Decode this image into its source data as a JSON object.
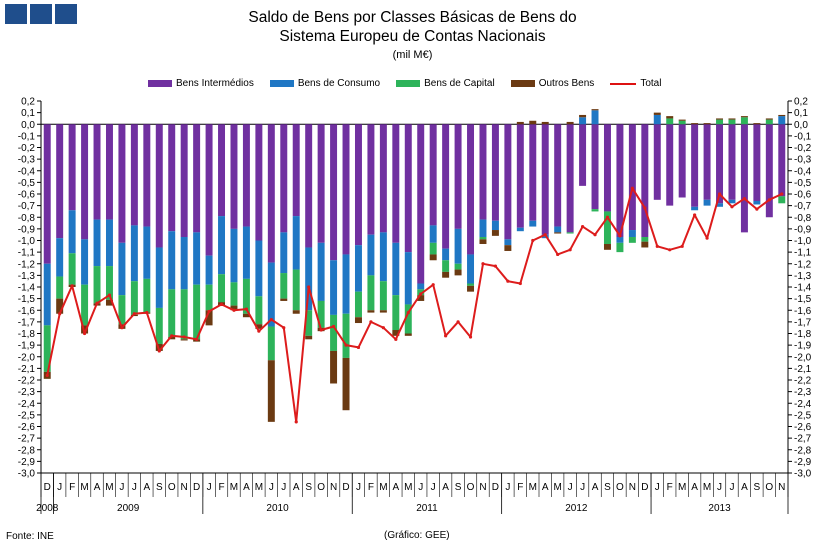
{
  "title_line1": "Saldo de Bens por Classes Básicas de Bens do",
  "title_line2": "Sistema Europeu de Contas Nacionais",
  "units": "(mil M€)",
  "source": "Fonte: INE",
  "credit": "(Gráfico: GEE)",
  "colors": {
    "intermedios": "#7030a0",
    "consumo": "#1f77c4",
    "capital": "#2db35a",
    "outros": "#6b3a12",
    "total": "#dd1c1c"
  },
  "chart_data": {
    "type": "bar",
    "stacked": true,
    "legend": [
      "Bens Intermédios",
      "Bens de Consumo",
      "Bens de Capital",
      "Outros Bens",
      "Total"
    ],
    "ylim": [
      -3.0,
      0.2
    ],
    "yticks": [
      "0,2",
      "0,1",
      "0,0",
      "-0,1",
      "-0,2",
      "-0,3",
      "-0,4",
      "-0,5",
      "-0,6",
      "-0,7",
      "-0,8",
      "-0,9",
      "-1,0",
      "-1,1",
      "-1,2",
      "-1,3",
      "-1,4",
      "-1,5",
      "-1,6",
      "-1,7",
      "-1,8",
      "-1,9",
      "-2,0",
      "-2,1",
      "-2,2",
      "-2,3",
      "-2,4",
      "-2,5",
      "-2,6",
      "-2,7",
      "-2,8",
      "-2,9",
      "-3,0"
    ],
    "categories": [
      "D",
      "J",
      "F",
      "M",
      "A",
      "M",
      "J",
      "J",
      "A",
      "S",
      "O",
      "N",
      "D",
      "J",
      "F",
      "M",
      "A",
      "M",
      "J",
      "J",
      "A",
      "S",
      "O",
      "N",
      "D",
      "J",
      "F",
      "M",
      "A",
      "M",
      "J",
      "J",
      "A",
      "S",
      "O",
      "N",
      "D",
      "J",
      "F",
      "M",
      "A",
      "M",
      "J",
      "J",
      "A",
      "S",
      "O",
      "N",
      "D",
      "J",
      "F",
      "M",
      "A",
      "M",
      "J",
      "J",
      "A",
      "S",
      "O",
      "N"
    ],
    "years": [
      {
        "label": "2008",
        "start": 0,
        "end": 0
      },
      {
        "label": "2009",
        "start": 1,
        "end": 12
      },
      {
        "label": "2010",
        "start": 13,
        "end": 24
      },
      {
        "label": "2011",
        "start": 25,
        "end": 36
      },
      {
        "label": "2012",
        "start": 37,
        "end": 48
      },
      {
        "label": "2013",
        "start": 49,
        "end": 59
      }
    ],
    "series": [
      {
        "name": "Bens Intermédios",
        "values": [
          -1.2,
          -0.98,
          -0.74,
          -0.99,
          -0.82,
          -0.82,
          -1.02,
          -0.87,
          -0.88,
          -1.06,
          -0.92,
          -0.97,
          -0.93,
          -1.13,
          -0.79,
          -0.9,
          -0.88,
          -1.0,
          -1.19,
          -0.93,
          -0.79,
          -1.06,
          -1.02,
          -1.17,
          -1.12,
          -1.04,
          -0.95,
          -0.93,
          -1.02,
          -1.1,
          -1.37,
          -0.87,
          -1.07,
          -0.9,
          -1.12,
          -0.82,
          -0.83,
          -0.99,
          -0.89,
          -0.83,
          -0.95,
          -0.88,
          -0.93,
          -0.53,
          -0.73,
          -0.75,
          -0.97,
          -0.91,
          -0.97,
          -0.65,
          -0.7,
          -0.63,
          -0.71,
          -0.65,
          -0.68,
          -0.65,
          -0.93,
          -0.66,
          -0.8,
          -0.62
        ]
      },
      {
        "name": "Bens de Consumo",
        "values": [
          -0.53,
          -0.33,
          -0.37,
          -0.39,
          -0.4,
          -0.4,
          -0.45,
          -0.48,
          -0.45,
          -0.52,
          -0.5,
          -0.45,
          -0.45,
          -0.25,
          -0.5,
          -0.46,
          -0.45,
          -0.48,
          -0.55,
          -0.35,
          -0.46,
          -0.54,
          -0.5,
          -0.47,
          -0.51,
          -0.4,
          -0.35,
          -0.42,
          -0.45,
          -0.45,
          -0.05,
          -0.15,
          -0.1,
          -0.3,
          -0.25,
          -0.15,
          -0.08,
          -0.05,
          -0.03,
          -0.05,
          -0.03,
          -0.05,
          0.0,
          0.06,
          0.12,
          0.0,
          -0.05,
          -0.06,
          0.0,
          0.08,
          0.0,
          0.0,
          -0.03,
          -0.05,
          -0.03,
          -0.03,
          0.0,
          -0.03,
          0.0,
          0.07
        ]
      },
      {
        "name": "Bens de Capital",
        "values": [
          -0.4,
          -0.19,
          -0.27,
          -0.35,
          -0.32,
          -0.29,
          -0.25,
          -0.29,
          -0.29,
          -0.31,
          -0.41,
          -0.43,
          -0.47,
          -0.22,
          -0.24,
          -0.2,
          -0.3,
          -0.24,
          -0.29,
          -0.22,
          -0.35,
          -0.22,
          -0.23,
          -0.31,
          -0.38,
          -0.22,
          -0.3,
          -0.25,
          -0.3,
          -0.25,
          -0.05,
          -0.1,
          -0.1,
          -0.05,
          -0.02,
          -0.02,
          0.0,
          0.0,
          0.0,
          0.0,
          0.0,
          0.0,
          -0.01,
          0.0,
          -0.02,
          -0.28,
          -0.08,
          -0.05,
          -0.04,
          0.0,
          0.05,
          0.03,
          0.0,
          0.0,
          0.04,
          0.04,
          0.06,
          0.0,
          0.04,
          -0.06
        ]
      },
      {
        "name": "Outros Bens",
        "values": [
          -0.06,
          -0.13,
          -0.02,
          -0.07,
          -0.02,
          -0.05,
          -0.04,
          -0.01,
          -0.01,
          -0.06,
          -0.02,
          -0.01,
          -0.02,
          -0.13,
          -0.03,
          -0.04,
          -0.03,
          -0.04,
          -0.53,
          -0.02,
          -0.03,
          -0.03,
          -0.03,
          -0.28,
          -0.45,
          -0.05,
          -0.02,
          -0.02,
          -0.05,
          -0.02,
          -0.05,
          -0.05,
          -0.05,
          -0.05,
          -0.05,
          -0.04,
          -0.05,
          -0.05,
          0.02,
          0.03,
          0.02,
          -0.01,
          0.02,
          0.02,
          0.01,
          -0.05,
          0.0,
          0.0,
          -0.05,
          0.02,
          0.02,
          0.01,
          0.01,
          0.01,
          0.01,
          0.01,
          0.01,
          0.01,
          0.01,
          0.01
        ]
      },
      {
        "name": "Total",
        "values": [
          -2.16,
          -1.63,
          -1.39,
          -1.8,
          -1.54,
          -1.47,
          -1.75,
          -1.63,
          -1.62,
          -1.95,
          -1.82,
          -1.83,
          -1.85,
          -1.61,
          -1.55,
          -1.6,
          -1.59,
          -1.78,
          -1.68,
          -1.75,
          -2.56,
          -1.4,
          -1.77,
          -1.74,
          -1.9,
          -1.92,
          -1.7,
          -1.75,
          -1.85,
          -1.62,
          -1.46,
          -1.38,
          -1.82,
          -1.7,
          -1.83,
          -1.2,
          -1.22,
          -1.35,
          -1.37,
          -1.0,
          -0.95,
          -1.12,
          -1.08,
          -0.88,
          -0.95,
          -0.8,
          -0.96,
          -0.55,
          -0.72,
          -1.05,
          -1.08,
          -1.05,
          -0.78,
          -0.98,
          -0.6,
          -0.71,
          -0.64,
          -0.73,
          -0.65,
          -0.6
        ]
      }
    ]
  }
}
